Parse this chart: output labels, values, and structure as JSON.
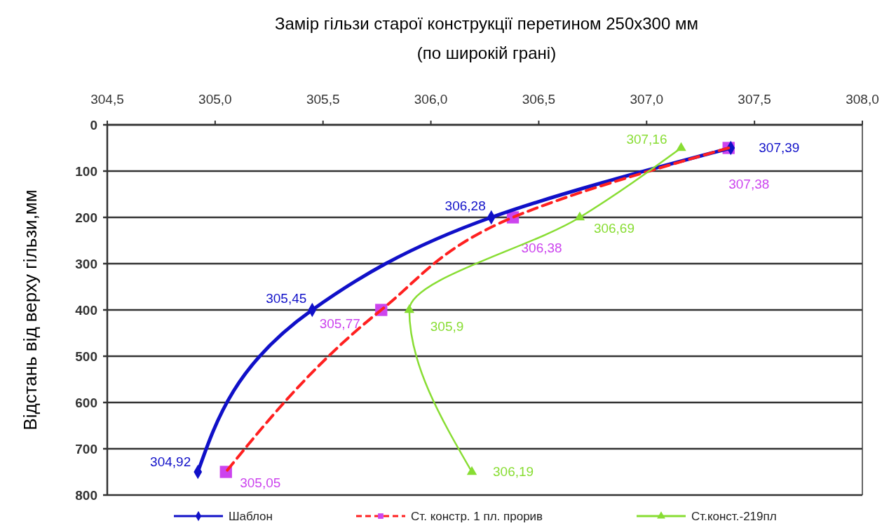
{
  "chart_data": {
    "type": "line",
    "title": "Замір гільзи старої конструкції перетином 250х300 мм",
    "subtitle": "(по широкій грані)",
    "ylabel": "Відстань від верху гільзи,мм",
    "xlim": [
      304.5,
      308
    ],
    "xticks": [
      {
        "value": 304.5,
        "label": "304,5"
      },
      {
        "value": 305,
        "label": "305,0"
      },
      {
        "value": 305.5,
        "label": "305,5"
      },
      {
        "value": 306,
        "label": "306,0"
      },
      {
        "value": 306.5,
        "label": "306,5"
      },
      {
        "value": 307,
        "label": "307,0"
      },
      {
        "value": 307.5,
        "label": "307,5"
      },
      {
        "value": 308,
        "label": "308,0"
      }
    ],
    "ylim": [
      800,
      0
    ],
    "yticks": [
      0,
      100,
      200,
      300,
      400,
      500,
      600,
      700,
      800
    ],
    "grid": "y",
    "legend": "bottom",
    "orientation": "horizontal",
    "series": [
      {
        "name": "Шаблон",
        "color": "#1010c8",
        "marker": "diamond",
        "line_style": "solid",
        "values": [
          307.39,
          306.28,
          305.45,
          304.92
        ],
        "x": [
          50,
          200,
          400,
          750
        ],
        "value_labels": [
          "307,39",
          "306,28",
          "305,45",
          "304,92"
        ]
      },
      {
        "name": "Ст. констр. 1 пл.  прорив",
        "color": "#ff2020",
        "colors": [
          "#cc44ee",
          "#cc44ee",
          "#cc44ee",
          "#cc44ee"
        ],
        "marker": "square",
        "line_style": "dashed",
        "values": [
          307.38,
          306.38,
          305.77,
          305.05
        ],
        "x": [
          50,
          200,
          400,
          750
        ],
        "value_labels": [
          "307,38",
          "306,38",
          "305,77",
          "305,05"
        ]
      },
      {
        "name": "Ст.конст.-219пл",
        "color": "#88dd33",
        "marker": "triangle",
        "line_style": "solid",
        "values": [
          307.16,
          306.69,
          305.9,
          306.19
        ],
        "x": [
          50,
          200,
          400,
          750
        ],
        "value_labels": [
          "307,16",
          "306,69",
          "305,9",
          "306,19"
        ]
      }
    ]
  }
}
